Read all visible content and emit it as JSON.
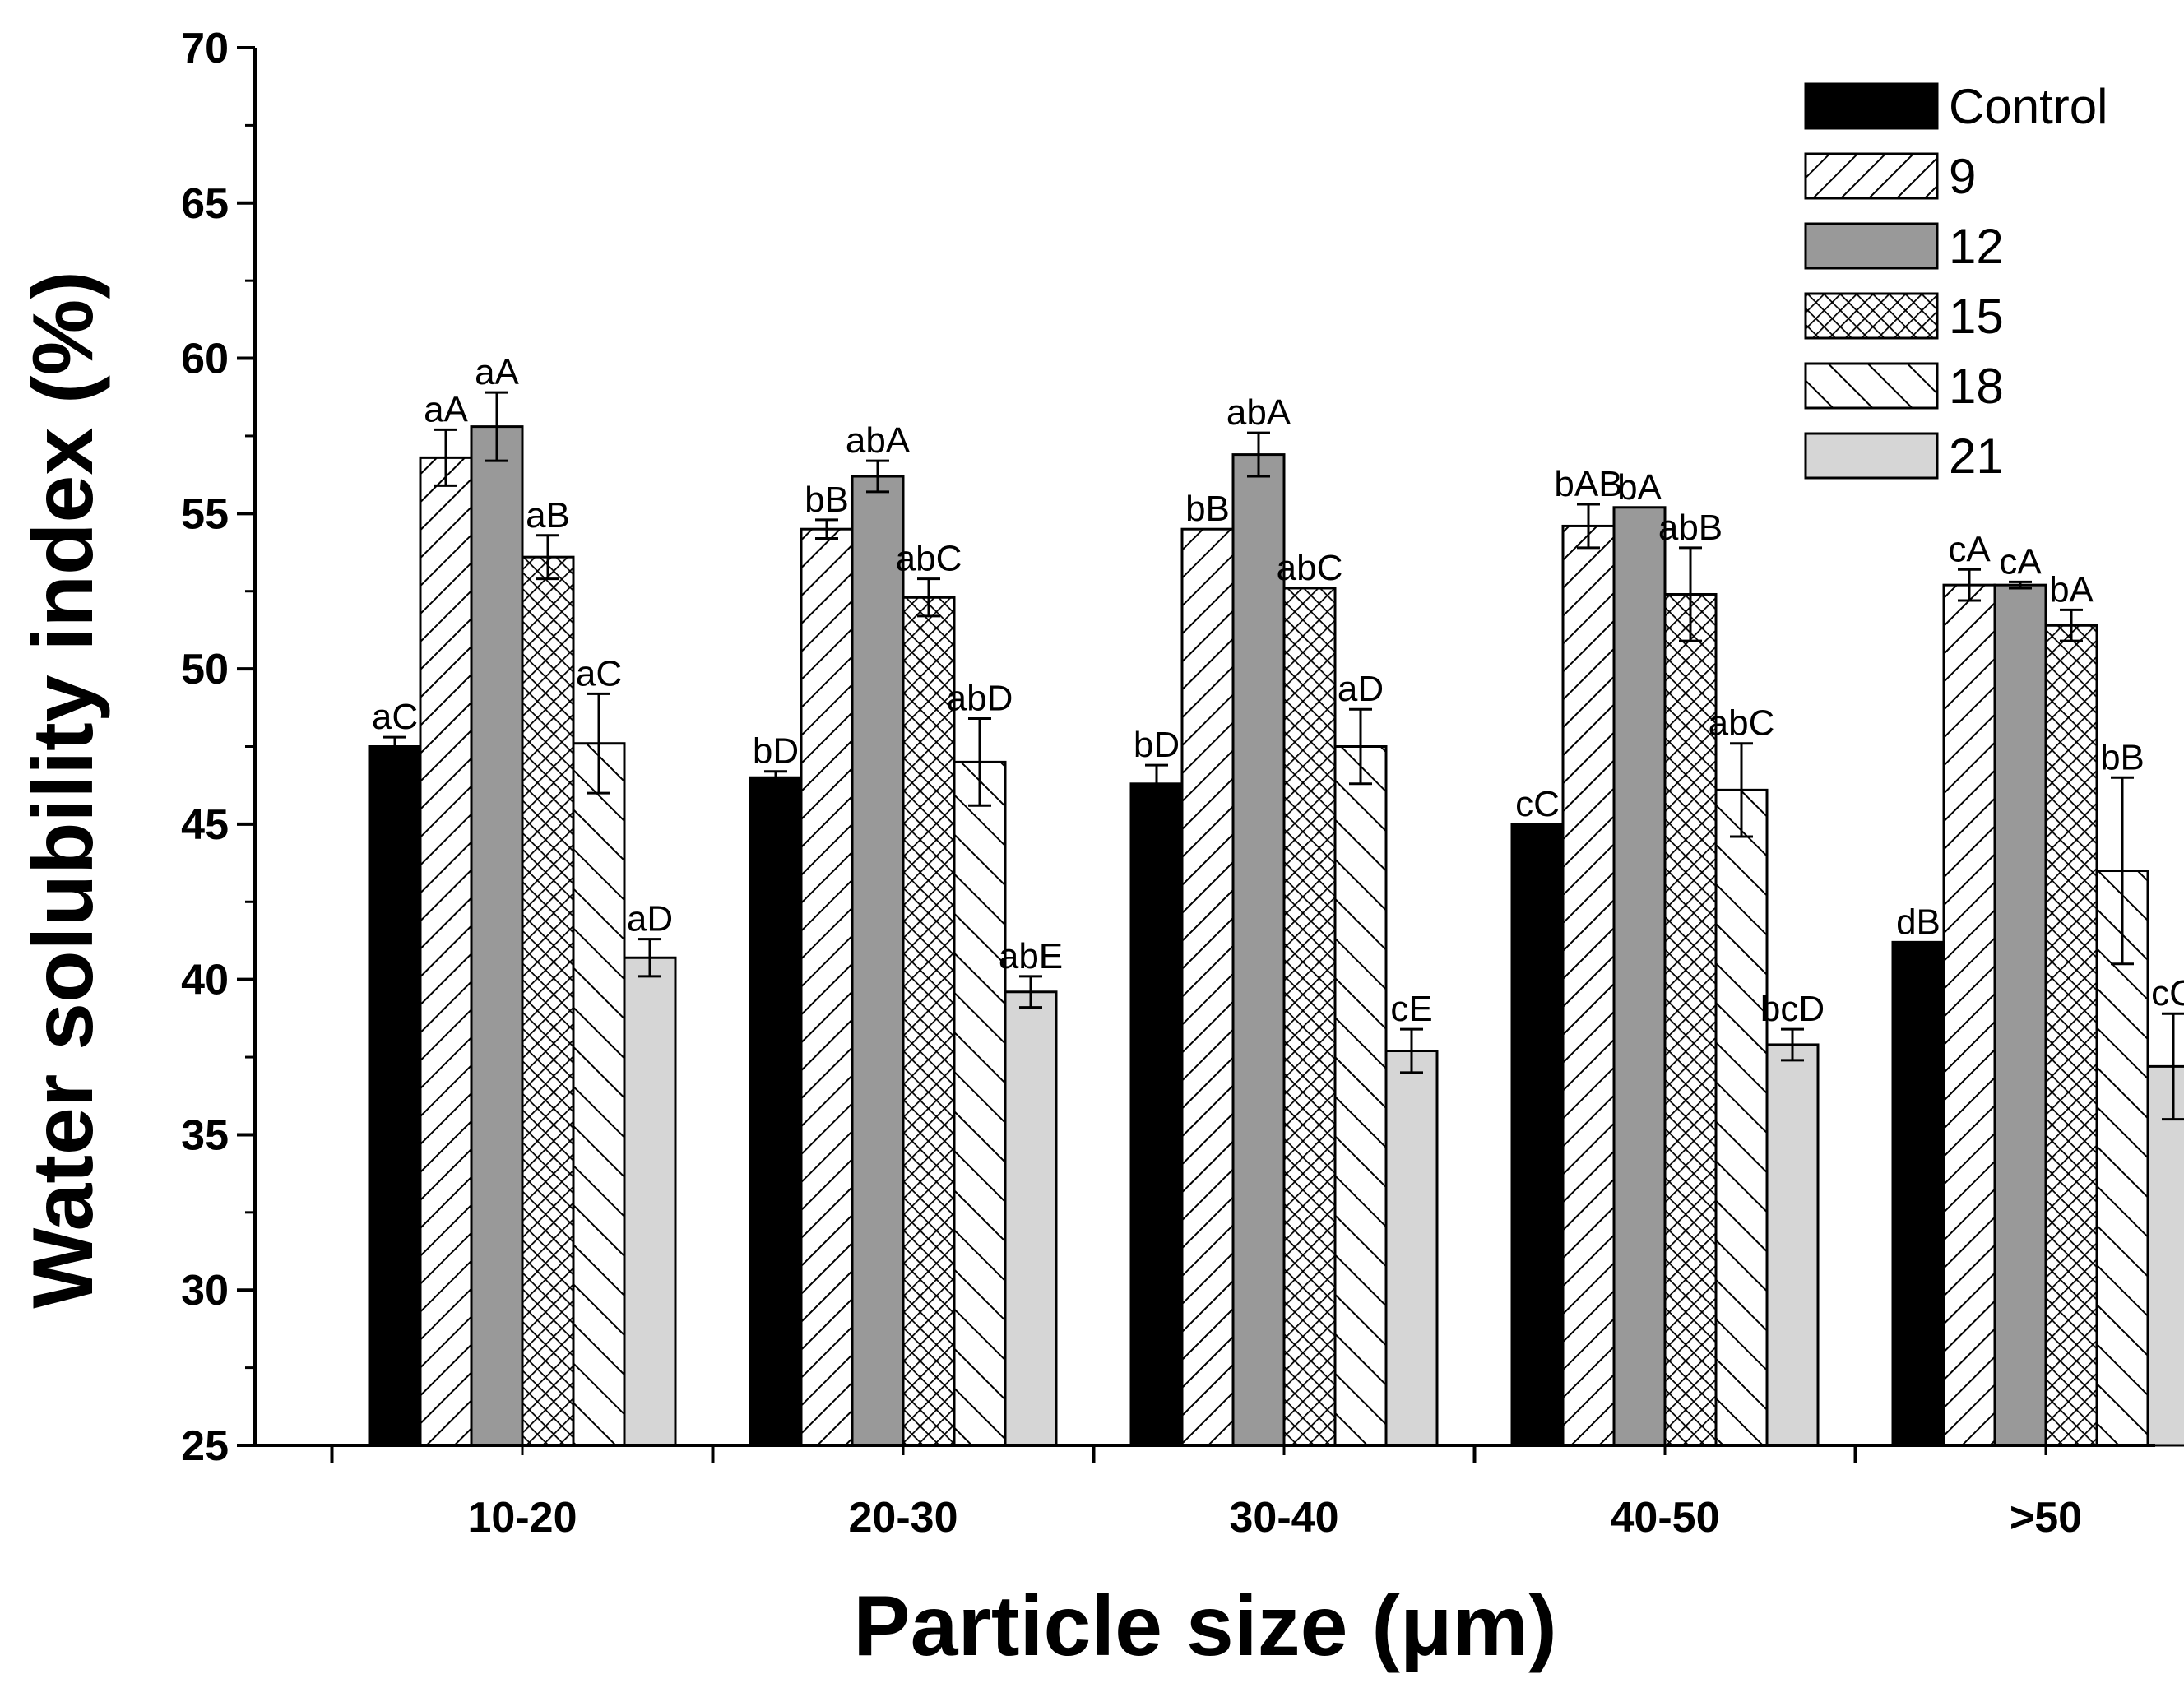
{
  "chart_data": {
    "type": "bar",
    "title": "",
    "xlabel": "Particle size (μm)",
    "ylabel": "Water solubility index (%)",
    "ylim": [
      25,
      70
    ],
    "yticks": [
      25,
      30,
      35,
      40,
      45,
      50,
      55,
      60,
      65,
      70
    ],
    "grid": false,
    "legend_position": "top-right",
    "categories": [
      "10-20",
      "20-30",
      "30-40",
      "40-50",
      ">50"
    ],
    "series": [
      {
        "name": "Control",
        "pattern": "solid-black",
        "fill": "#000000",
        "values": [
          47.5,
          46.5,
          46.3,
          45.0,
          41.2
        ],
        "errors": [
          0.3,
          0.2,
          0.6,
          0.0,
          0.0
        ],
        "labels": [
          "aC",
          "bD",
          "bD",
          "cC",
          "dB"
        ]
      },
      {
        "name": "9",
        "pattern": "diagonal-up",
        "fill": "#ffffff",
        "values": [
          56.8,
          54.5,
          54.5,
          54.6,
          52.7
        ],
        "errors": [
          0.9,
          0.3,
          0.0,
          0.7,
          0.5
        ],
        "labels": [
          "aA",
          "bB",
          "bB",
          "bAB",
          "cA"
        ]
      },
      {
        "name": "12",
        "pattern": "solid-gray",
        "fill": "#999999",
        "values": [
          57.8,
          56.2,
          56.9,
          55.2,
          52.7
        ],
        "errors": [
          1.1,
          0.5,
          0.7,
          0.0,
          0.1
        ],
        "labels": [
          "aA",
          "abA",
          "abA",
          "bA",
          "cA"
        ]
      },
      {
        "name": "15",
        "pattern": "crosshatch",
        "fill": "#ffffff",
        "values": [
          53.6,
          52.3,
          52.6,
          52.4,
          51.4
        ],
        "errors": [
          0.7,
          0.6,
          0.0,
          1.5,
          0.5
        ],
        "labels": [
          "aB",
          "abC",
          "abC",
          "abB",
          "bA"
        ]
      },
      {
        "name": "18",
        "pattern": "diagonal-down",
        "fill": "#ffffff",
        "values": [
          47.6,
          47.0,
          47.5,
          46.1,
          43.5
        ],
        "errors": [
          1.6,
          1.4,
          1.2,
          1.5,
          3.0
        ],
        "labels": [
          "aC",
          "abD",
          "aD",
          "abC",
          "bB"
        ]
      },
      {
        "name": "21",
        "pattern": "solid-lightgray",
        "fill": "#d6d6d6",
        "values": [
          40.7,
          39.6,
          37.7,
          37.9,
          37.2
        ],
        "errors": [
          0.6,
          0.5,
          0.7,
          0.5,
          1.7
        ],
        "labels": [
          "aD",
          "abE",
          "cE",
          "bcD",
          "cC"
        ]
      }
    ]
  }
}
